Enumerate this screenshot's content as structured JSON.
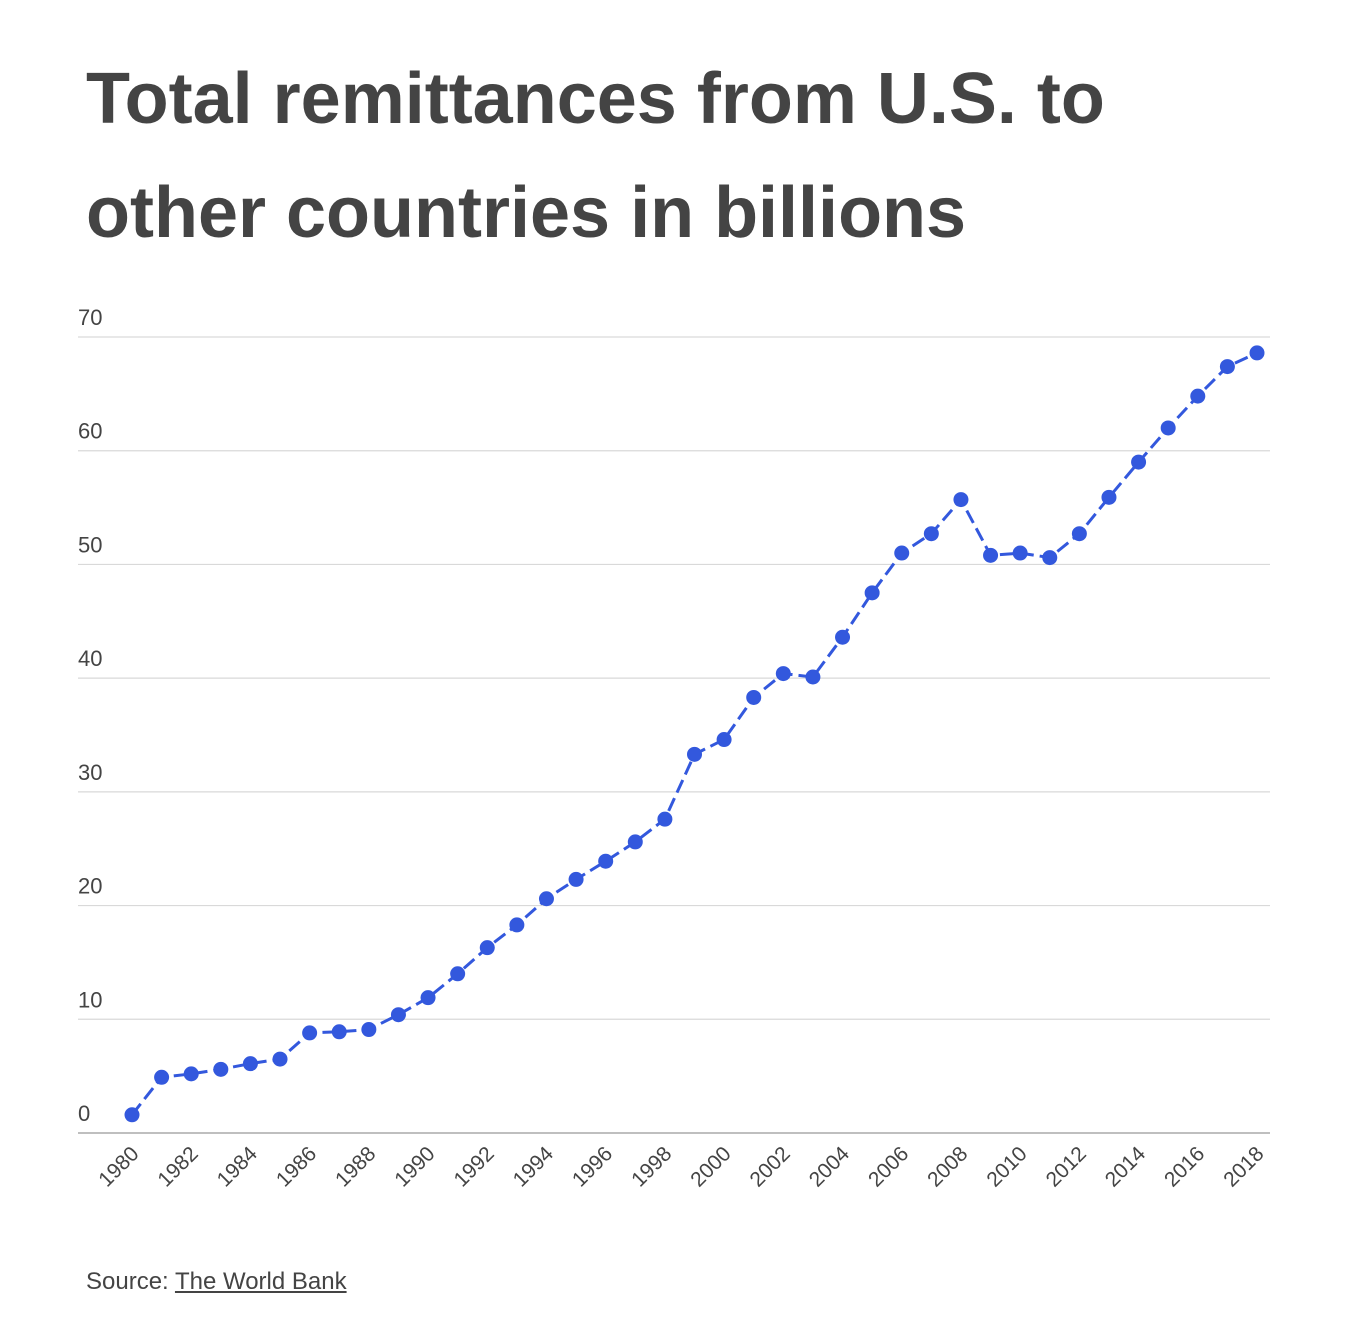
{
  "title": "Total remittances from U.S. to other countries in billions",
  "source": {
    "label": "Source:",
    "link_text": "The World Bank"
  },
  "colors": {
    "line": "#3358dd",
    "grid": "#d9d9d9",
    "axis": "#aaaaaa",
    "text": "#444444"
  },
  "chart_data": {
    "type": "line",
    "title": "Total remittances from U.S. to other countries in billions",
    "xlabel": "",
    "ylabel": "",
    "ylim": [
      0,
      70
    ],
    "yticks": [
      0,
      10,
      20,
      30,
      40,
      50,
      60,
      70
    ],
    "xticks": [
      1980,
      1982,
      1984,
      1986,
      1988,
      1990,
      1992,
      1994,
      1996,
      1998,
      2000,
      2002,
      2004,
      2006,
      2008,
      2010,
      2012,
      2014,
      2016,
      2018
    ],
    "grid": true,
    "legend": "none",
    "line_style": "dashed with markers",
    "series": [
      {
        "x": [
          1980,
          1981,
          1982,
          1983,
          1984,
          1985,
          1986,
          1987,
          1988,
          1989,
          1990,
          1991,
          1992,
          1993,
          1994,
          1995,
          1996,
          1997,
          1998,
          1999,
          2000,
          2001,
          2002,
          2003,
          2004,
          2005,
          2006,
          2007,
          2008,
          2009,
          2010,
          2011,
          2012,
          2013,
          2014,
          2015,
          2016,
          2017,
          2018
        ],
        "values": [
          1.6,
          4.9,
          5.2,
          5.6,
          6.1,
          6.5,
          8.8,
          8.9,
          9.1,
          10.4,
          11.9,
          14.0,
          16.3,
          18.3,
          20.6,
          22.3,
          23.9,
          25.6,
          27.6,
          33.3,
          34.6,
          38.3,
          40.4,
          40.1,
          43.6,
          47.5,
          51.0,
          52.7,
          55.7,
          50.8,
          51.0,
          50.6,
          52.7,
          55.9,
          59.0,
          62.0,
          64.8,
          67.4,
          68.6
        ]
      }
    ]
  }
}
